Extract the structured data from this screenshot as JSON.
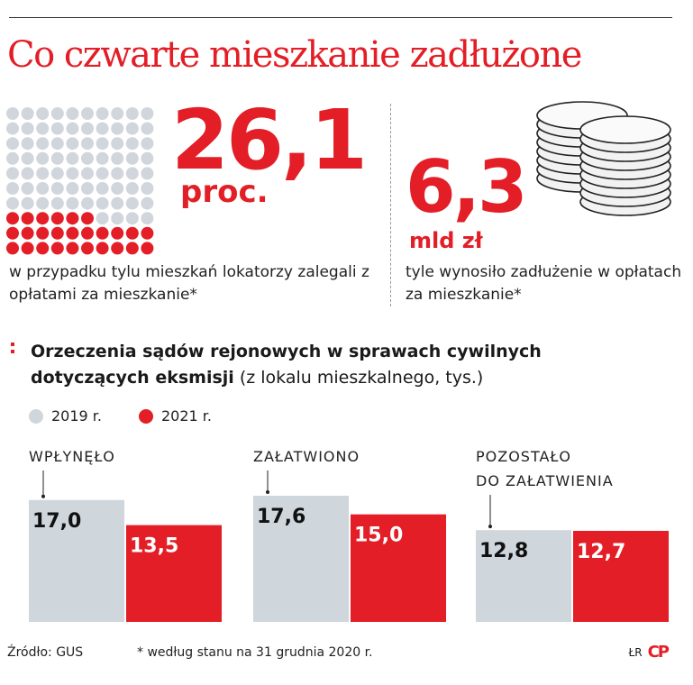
{
  "title": "Co czwarte mieszkanie zadłużone",
  "stat1": {
    "value": "26,1",
    "unit": "proc.",
    "description": "w przypadku tylu mieszkań lokatorzy zalegali z opłatami za mieszkanie*",
    "percent": 26.1
  },
  "stat2": {
    "value": "6,3",
    "unit": "mld zł",
    "description": "tyle wynosiło zadłużenie w opłatach za mieszkanie*"
  },
  "chart_title_bold": "Orzeczenia sądów rejonowych w sprawach cywilnych dotyczących eksmisji",
  "chart_title_light": "(z lokalu mieszkalnego, tys.)",
  "colors": {
    "accent": "#e31e26",
    "grey": "#cfd6dc",
    "text": "#1a1a1a"
  },
  "chart_data": {
    "type": "bar",
    "categories": [
      "WPŁYNĘŁO",
      "ZAŁATWIONO",
      "POZOSTAŁO DO ZAŁATWIENIA"
    ],
    "category_lines": [
      [
        "WPŁYNĘŁO"
      ],
      [
        "ZAŁATWIONO"
      ],
      [
        "POZOSTAŁO",
        "DO ZAŁATWIENIA"
      ]
    ],
    "series": [
      {
        "name": "2019 r.",
        "values": [
          17.0,
          17.6,
          12.8
        ],
        "labels": [
          "17,0",
          "17,6",
          "12,8"
        ],
        "color": "#cfd6dc"
      },
      {
        "name": "2021 r.",
        "values": [
          13.5,
          15.0,
          12.7
        ],
        "labels": [
          "13,5",
          "15,0",
          "12,7"
        ],
        "color": "#e31e26"
      }
    ],
    "ylim": [
      0,
      17.6
    ],
    "grid": false,
    "legend": "top-left"
  },
  "footer": {
    "source": "Źródło: GUS",
    "note": "* według stanu na 31 grudnia 2020 r.",
    "credit": "ŁR",
    "logo": "CP"
  }
}
